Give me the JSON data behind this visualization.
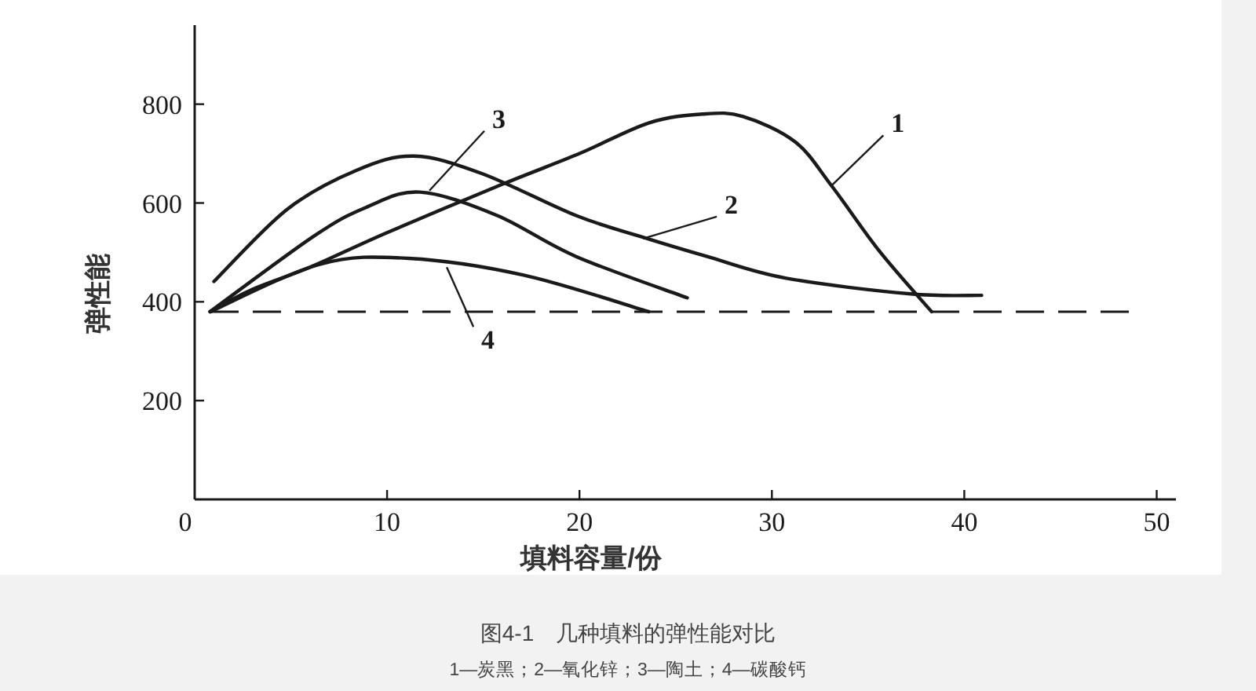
{
  "chart_data": {
    "type": "line",
    "title": "图4-1　几种填料的弹性能对比",
    "xlabel": "填料容量/份",
    "ylabel": "弹性能",
    "xlim": [
      0,
      51
    ],
    "ylim": [
      0,
      960
    ],
    "xticks": [
      0,
      10,
      20,
      30,
      40,
      50
    ],
    "yticks": [
      200,
      400,
      600,
      800
    ],
    "grid": false,
    "marker": "none",
    "line_style": "solid",
    "series": [
      {
        "color": "#1a1a1a",
        "x": [
          0.8,
          3,
          6,
          10,
          16,
          20,
          23.6,
          26.4,
          28.5,
          31.2,
          33.1,
          35.6,
          38.3
        ],
        "values": [
          380,
          425,
          470,
          540,
          638,
          700,
          762,
          780,
          775,
          724,
          635,
          502,
          380
        ]
      },
      {
        "color": "#1a1a1a",
        "x": [
          1,
          4.8,
          8.4,
          11.4,
          14.9,
          19.8,
          23.1,
          26.6,
          30.7,
          37.2,
          40.9
        ],
        "values": [
          441,
          587,
          666,
          695,
          660,
          575,
          533,
          492,
          448,
          416,
          413
        ]
      },
      {
        "color": "#1a1a1a",
        "x": [
          0.8,
          6.2,
          8.9,
          11.7,
          15.7,
          19.8,
          25.6
        ],
        "values": [
          380,
          533,
          591,
          622,
          575,
          492,
          408
        ]
      },
      {
        "color": "#1a1a1a",
        "x": [
          0.8,
          6.5,
          11.1,
          17.1,
          23.6
        ],
        "values": [
          380,
          476,
          488,
          454,
          380
        ]
      }
    ],
    "ref_lines": [
      {
        "axis": "y",
        "value": 380,
        "line_style": "dashed",
        "color": "#1a1a1a"
      }
    ],
    "annotations": [
      {
        "text": "1",
        "x": 33.1,
        "y": 635
      },
      {
        "text": "2",
        "x": 23.3,
        "y": 528
      },
      {
        "text": "3",
        "x": 12.2,
        "y": 625
      },
      {
        "text": "4",
        "x": 13.1,
        "y": 470
      },
      "1—炭黑；2—氧化锌；3—陶土；4—碳酸钙"
    ]
  }
}
